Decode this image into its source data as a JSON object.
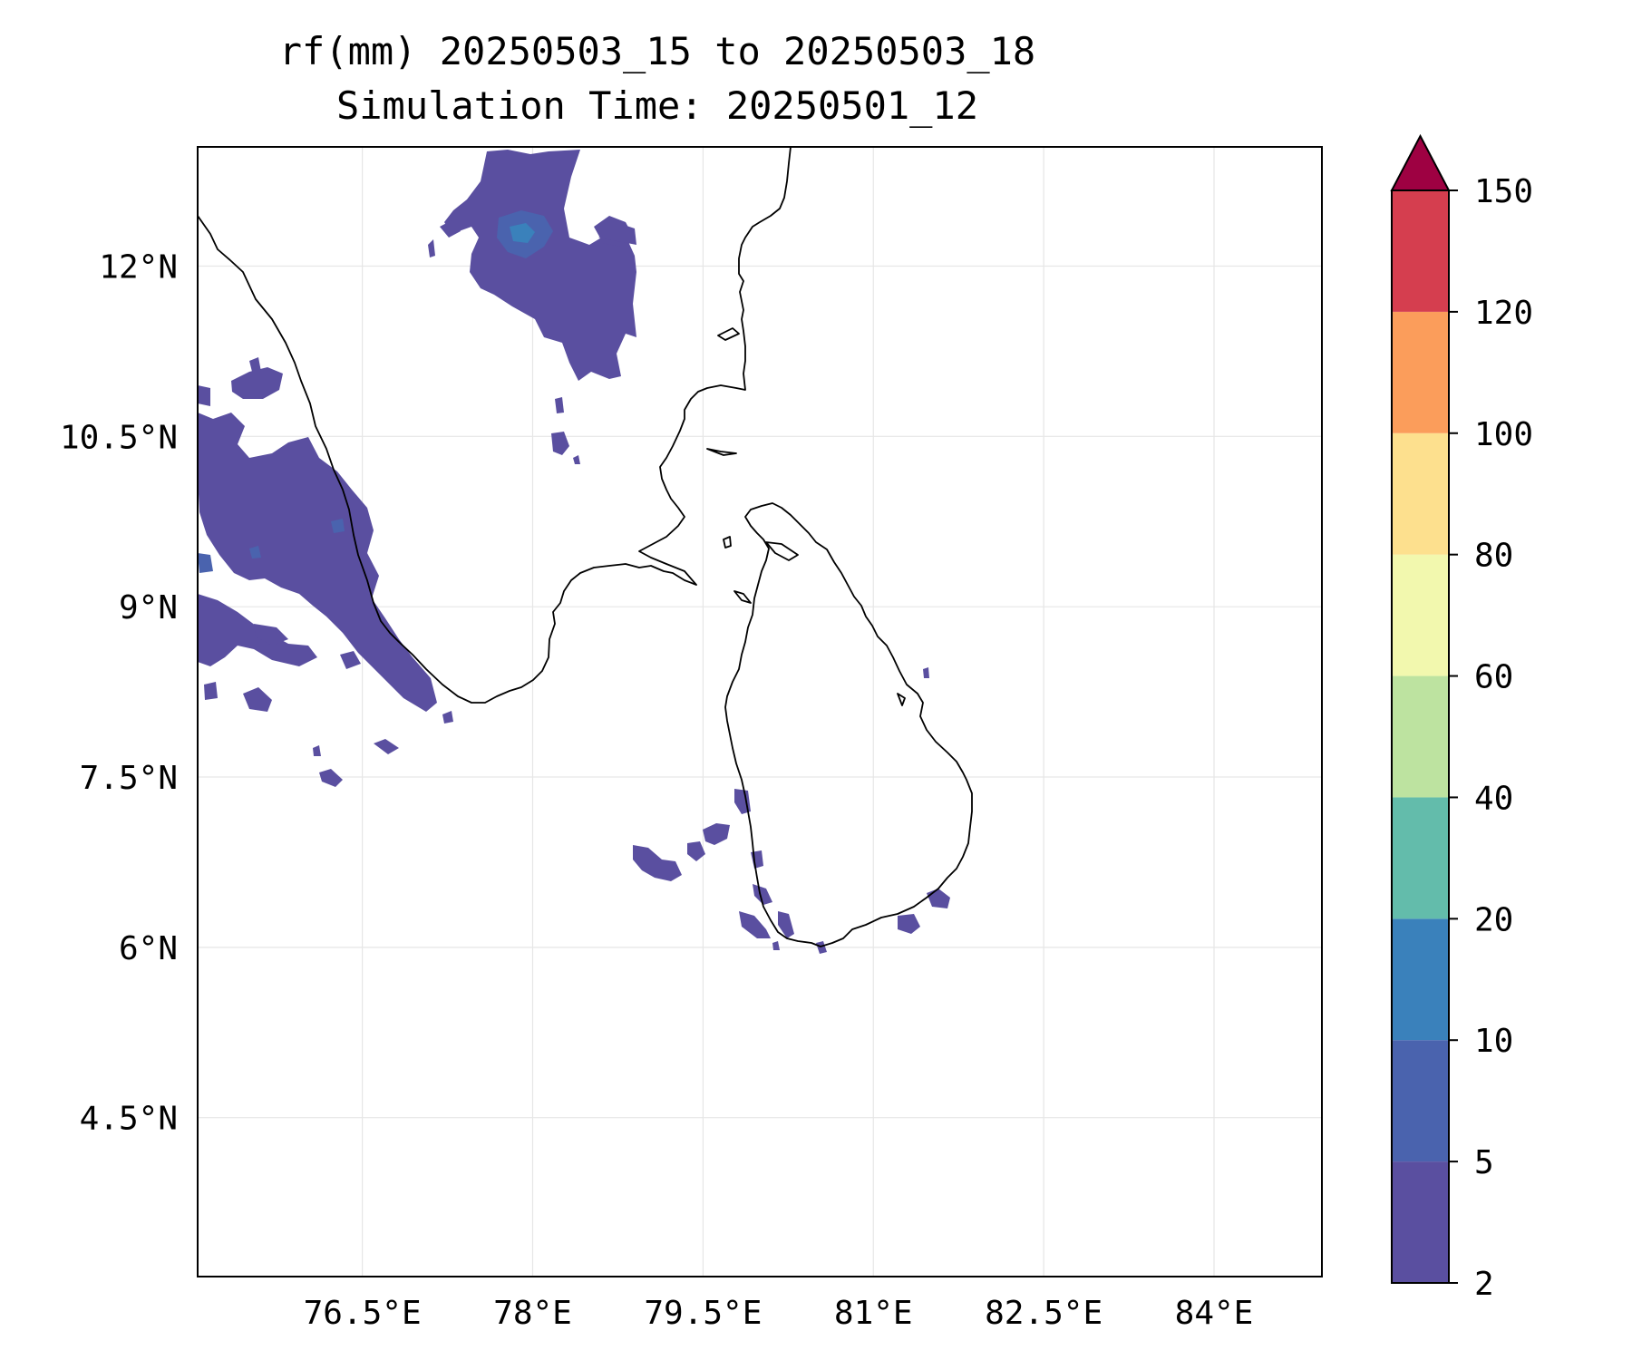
{
  "title_line1": "rf(mm) 20250503_15 to 20250503_18",
  "title_line2": "Simulation Time: 20250501_12",
  "chart_data": {
    "type": "heatmap",
    "title": "rf(mm) 20250503_15 to 20250503_18",
    "subtitle": "Simulation Time: 20250501_12",
    "x_ticks": [
      "76.5°E",
      "78°E",
      "79.5°E",
      "81°E",
      "82.5°E",
      "84°E"
    ],
    "y_ticks": [
      "12°N",
      "10.5°N",
      "9°N",
      "7.5°N",
      "6°N",
      "4.5°N"
    ],
    "x_tick_values": [
      76.5,
      78,
      79.5,
      81,
      82.5,
      84
    ],
    "y_tick_values": [
      12,
      10.5,
      9,
      7.5,
      6,
      4.5
    ],
    "xlim": [
      75.05,
      84.95
    ],
    "ylim": [
      3.1,
      13.05
    ],
    "grid": true,
    "colorbar": {
      "levels": [
        2,
        5,
        10,
        20,
        40,
        60,
        80,
        100,
        120,
        150
      ],
      "level_labels": [
        "2",
        "5",
        "10",
        "20",
        "40",
        "60",
        "80",
        "100",
        "120",
        "150"
      ],
      "colors": [
        "#5a4fa0",
        "#4a63ae",
        "#3a81bb",
        "#63bcab",
        "#bde3a0",
        "#f2f8ae",
        "#fde08e",
        "#fb9d5b",
        "#d53e4f"
      ],
      "extend_color": "#9e0142",
      "extend": "max"
    },
    "rain_patches": [
      {
        "region": "north-central 11-13N 77.5-79E",
        "level": "2-5",
        "core_level": "10-20"
      },
      {
        "region": "west coast 8-11N 75-77.5E",
        "level": "2-5",
        "core_level": "5-10"
      },
      {
        "region": "south-west Sri Lanka 6-7.3N 79-80.2E",
        "level": "2-5"
      },
      {
        "region": "south-east Sri Lanka 6-6.5N 81.2-81.6E",
        "level": "2-5"
      }
    ]
  }
}
